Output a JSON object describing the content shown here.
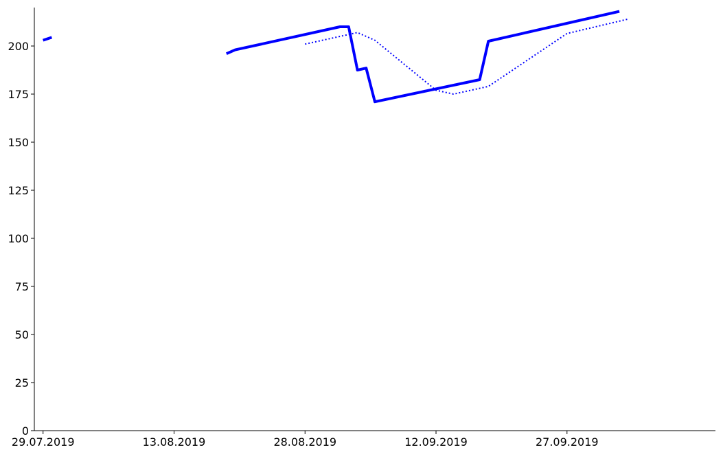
{
  "chart_data": {
    "type": "line",
    "title": "",
    "xlabel": "",
    "ylabel": "",
    "x_ticks": [
      "29.07.2019",
      "13.08.2019",
      "28.08.2019",
      "12.09.2019",
      "27.09.2019"
    ],
    "y_ticks": [
      0,
      25,
      50,
      75,
      100,
      125,
      150,
      175,
      200
    ],
    "xlim": [
      "2019-07-28",
      "2019-10-14"
    ],
    "ylim": [
      0,
      220
    ],
    "grid": false,
    "legend": "none",
    "series": [
      {
        "style": "solid",
        "color": "#0000ff",
        "segments": [
          [
            {
              "x": "2019-07-29",
              "y": 203
            },
            {
              "x": "2019-07-30",
              "y": 204.5
            }
          ],
          [
            {
              "x": "2019-08-19",
              "y": 196
            },
            {
              "x": "2019-08-20",
              "y": 198
            },
            {
              "x": "2019-09-01",
              "y": 210
            },
            {
              "x": "2019-09-02",
              "y": 210
            },
            {
              "x": "2019-09-03",
              "y": 187.5
            },
            {
              "x": "2019-09-04",
              "y": 188.5
            },
            {
              "x": "2019-09-05",
              "y": 171
            },
            {
              "x": "2019-09-17",
              "y": 182.5
            },
            {
              "x": "2019-09-18",
              "y": 202.5
            },
            {
              "x": "2019-10-03",
              "y": 218
            }
          ]
        ]
      },
      {
        "style": "dotted",
        "color": "#0000ff",
        "segments": [
          [
            {
              "x": "2019-08-28",
              "y": 201
            },
            {
              "x": "2019-09-03",
              "y": 207
            },
            {
              "x": "2019-09-05",
              "y": 203
            },
            {
              "x": "2019-09-12",
              "y": 177
            },
            {
              "x": "2019-09-14",
              "y": 175
            },
            {
              "x": "2019-09-18",
              "y": 179
            },
            {
              "x": "2019-09-27",
              "y": 206.5
            },
            {
              "x": "2019-10-04",
              "y": 214
            }
          ]
        ]
      }
    ]
  }
}
